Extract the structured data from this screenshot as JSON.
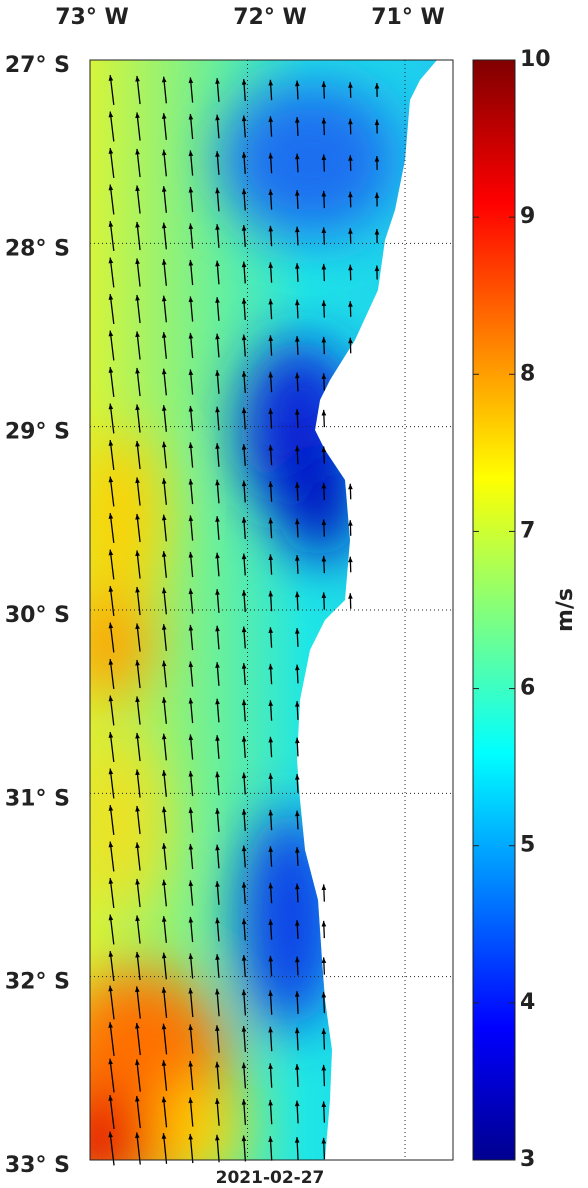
{
  "map": {
    "lon_labels": [
      "73° W",
      "72° W",
      "71° W"
    ],
    "lat_labels": [
      "27° S",
      "28° S",
      "29° S",
      "30° S",
      "31° S",
      "32° S",
      "33° S"
    ],
    "date": "2021-02-27",
    "colorbar": {
      "label": "m/s",
      "lim": [
        3,
        10
      ],
      "ticks": [
        3,
        4,
        5,
        6,
        7,
        8,
        9,
        10
      ]
    }
  }
}
